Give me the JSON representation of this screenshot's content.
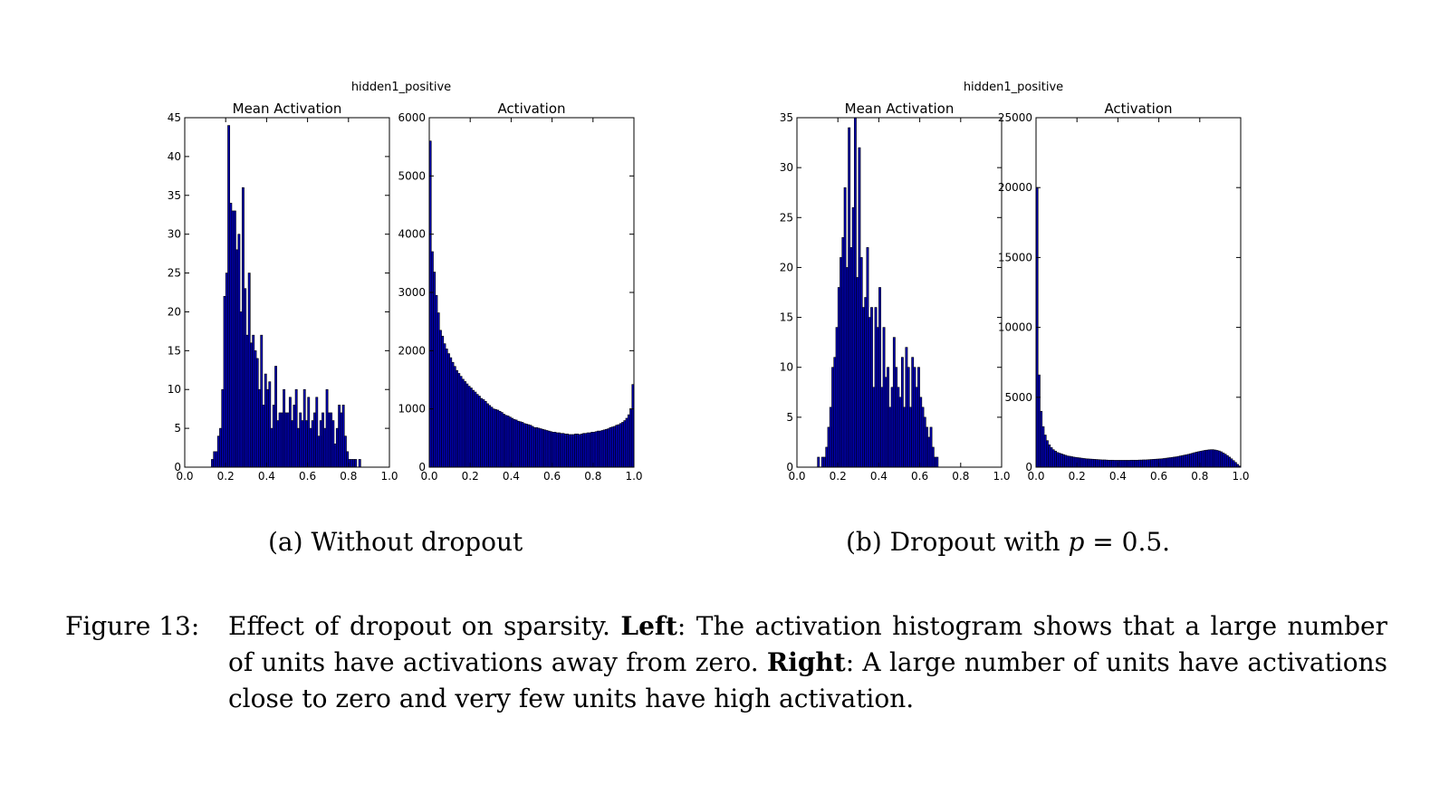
{
  "chart_data": [
    {
      "type": "bar",
      "panel": "a-left",
      "suptitle": "hidden1_positive",
      "title": "Mean Activation",
      "xlim": [
        0.0,
        1.0
      ],
      "ylim": [
        0,
        45
      ],
      "xticks": [
        "0.0",
        "0.2",
        "0.4",
        "0.6",
        "0.8",
        "1.0"
      ],
      "yticks": [
        "0",
        "5",
        "10",
        "15",
        "20",
        "25",
        "30",
        "35",
        "40",
        "45"
      ],
      "bin_width": 0.01,
      "x": [
        0.13,
        0.14,
        0.15,
        0.16,
        0.17,
        0.18,
        0.19,
        0.2,
        0.21,
        0.22,
        0.23,
        0.24,
        0.25,
        0.26,
        0.27,
        0.28,
        0.29,
        0.3,
        0.31,
        0.32,
        0.33,
        0.34,
        0.35,
        0.36,
        0.37,
        0.38,
        0.39,
        0.4,
        0.41,
        0.42,
        0.43,
        0.44,
        0.45,
        0.46,
        0.47,
        0.48,
        0.49,
        0.5,
        0.51,
        0.52,
        0.53,
        0.54,
        0.55,
        0.56,
        0.57,
        0.58,
        0.59,
        0.6,
        0.61,
        0.62,
        0.63,
        0.64,
        0.65,
        0.66,
        0.67,
        0.68,
        0.69,
        0.7,
        0.71,
        0.72,
        0.73,
        0.74,
        0.75,
        0.76,
        0.77,
        0.78,
        0.79,
        0.8,
        0.81,
        0.82,
        0.83,
        0.84,
        0.85
      ],
      "values": [
        1,
        2,
        2,
        4,
        5,
        10,
        22,
        25,
        44,
        34,
        33,
        33,
        28,
        30,
        20,
        36,
        23,
        17,
        25,
        16,
        17,
        15,
        14,
        10,
        17,
        8,
        12,
        10,
        11,
        5,
        8,
        13,
        6,
        7,
        7,
        10,
        7,
        7,
        9,
        6,
        8,
        10,
        5,
        7,
        6,
        10,
        6,
        9,
        5,
        6,
        7,
        9,
        4,
        6,
        7,
        5,
        10,
        7,
        7,
        6,
        3,
        5,
        8,
        7,
        8,
        4,
        2,
        1,
        1,
        1,
        1,
        0,
        1
      ]
    },
    {
      "type": "bar",
      "panel": "a-right",
      "title": "Activation",
      "xlim": [
        0.0,
        1.0
      ],
      "ylim": [
        0,
        6000
      ],
      "xticks": [
        "0.0",
        "0.2",
        "0.4",
        "0.6",
        "0.8",
        "1.0"
      ],
      "yticks": [
        "0",
        "1000",
        "2000",
        "3000",
        "4000",
        "5000",
        "6000"
      ],
      "bin_width": 0.01,
      "x": [
        0.0,
        0.01,
        0.02,
        0.03,
        0.04,
        0.05,
        0.06,
        0.07,
        0.08,
        0.09,
        0.1,
        0.11,
        0.12,
        0.13,
        0.14,
        0.15,
        0.16,
        0.17,
        0.18,
        0.19,
        0.2,
        0.21,
        0.22,
        0.23,
        0.24,
        0.25,
        0.26,
        0.27,
        0.28,
        0.29,
        0.3,
        0.31,
        0.32,
        0.33,
        0.34,
        0.35,
        0.36,
        0.37,
        0.38,
        0.39,
        0.4,
        0.41,
        0.42,
        0.43,
        0.44,
        0.45,
        0.46,
        0.47,
        0.48,
        0.49,
        0.5,
        0.51,
        0.52,
        0.53,
        0.54,
        0.55,
        0.56,
        0.57,
        0.58,
        0.59,
        0.6,
        0.61,
        0.62,
        0.63,
        0.64,
        0.65,
        0.66,
        0.67,
        0.68,
        0.69,
        0.7,
        0.71,
        0.72,
        0.73,
        0.74,
        0.75,
        0.76,
        0.77,
        0.78,
        0.79,
        0.8,
        0.81,
        0.82,
        0.83,
        0.84,
        0.85,
        0.86,
        0.87,
        0.88,
        0.89,
        0.9,
        0.91,
        0.92,
        0.93,
        0.94,
        0.95,
        0.96,
        0.97,
        0.98,
        0.99
      ],
      "values": [
        5600,
        3700,
        3350,
        2950,
        2650,
        2350,
        2250,
        2120,
        2030,
        1950,
        1880,
        1800,
        1730,
        1660,
        1610,
        1560,
        1510,
        1470,
        1430,
        1390,
        1360,
        1320,
        1290,
        1250,
        1220,
        1180,
        1160,
        1130,
        1090,
        1060,
        1030,
        1000,
        990,
        980,
        960,
        940,
        910,
        890,
        880,
        860,
        840,
        820,
        810,
        790,
        780,
        770,
        750,
        740,
        730,
        720,
        700,
        680,
        680,
        670,
        660,
        650,
        640,
        630,
        620,
        610,
        600,
        600,
        590,
        590,
        580,
        580,
        570,
        570,
        560,
        560,
        560,
        570,
        570,
        560,
        570,
        580,
        580,
        590,
        590,
        600,
        600,
        610,
        620,
        620,
        630,
        640,
        650,
        660,
        680,
        690,
        700,
        720,
        730,
        750,
        770,
        800,
        840,
        900,
        1000,
        1420
      ]
    },
    {
      "type": "bar",
      "panel": "b-left",
      "suptitle": "hidden1_positive",
      "title": "Mean Activation",
      "xlim": [
        0.0,
        1.0
      ],
      "ylim": [
        0,
        35
      ],
      "xticks": [
        "0.0",
        "0.2",
        "0.4",
        "0.6",
        "0.8",
        "1.0"
      ],
      "yticks": [
        "0",
        "5",
        "10",
        "15",
        "20",
        "25",
        "30",
        "35"
      ],
      "bin_width": 0.01,
      "x": [
        0.09,
        0.1,
        0.11,
        0.12,
        0.13,
        0.14,
        0.15,
        0.16,
        0.17,
        0.18,
        0.19,
        0.2,
        0.21,
        0.22,
        0.23,
        0.24,
        0.25,
        0.26,
        0.27,
        0.28,
        0.29,
        0.3,
        0.31,
        0.32,
        0.33,
        0.34,
        0.35,
        0.36,
        0.37,
        0.38,
        0.39,
        0.4,
        0.41,
        0.42,
        0.43,
        0.44,
        0.45,
        0.46,
        0.47,
        0.48,
        0.49,
        0.5,
        0.51,
        0.52,
        0.53,
        0.54,
        0.55,
        0.56,
        0.57,
        0.58,
        0.59,
        0.6,
        0.61,
        0.62,
        0.63,
        0.64,
        0.65,
        0.66,
        0.67,
        0.68
      ],
      "values": [
        0,
        1,
        0,
        1,
        1,
        2,
        4,
        6,
        10,
        11,
        14,
        18,
        21,
        23,
        28,
        20,
        34,
        22,
        26,
        35,
        19,
        32,
        21,
        16,
        17,
        22,
        15,
        16,
        8,
        16,
        14,
        18,
        8,
        14,
        9,
        10,
        6,
        8,
        13,
        10,
        8,
        7,
        11,
        6,
        12,
        10,
        6,
        11,
        10,
        8,
        10,
        7,
        6,
        5,
        4,
        3,
        4,
        2,
        1,
        1
      ]
    },
    {
      "type": "bar",
      "panel": "b-right",
      "title": "Activation",
      "xlim": [
        0.0,
        1.0
      ],
      "ylim": [
        0,
        25000
      ],
      "xticks": [
        "0.0",
        "0.2",
        "0.4",
        "0.6",
        "0.8",
        "1.0"
      ],
      "yticks": [
        "0",
        "5000",
        "10000",
        "15000",
        "20000",
        "25000"
      ],
      "bin_width": 0.01,
      "x": [
        0.0,
        0.01,
        0.02,
        0.03,
        0.04,
        0.05,
        0.06,
        0.07,
        0.08,
        0.09,
        0.1,
        0.11,
        0.12,
        0.13,
        0.14,
        0.15,
        0.16,
        0.17,
        0.18,
        0.19,
        0.2,
        0.21,
        0.22,
        0.23,
        0.24,
        0.25,
        0.26,
        0.27,
        0.28,
        0.29,
        0.3,
        0.31,
        0.32,
        0.33,
        0.34,
        0.35,
        0.36,
        0.37,
        0.38,
        0.39,
        0.4,
        0.41,
        0.42,
        0.43,
        0.44,
        0.45,
        0.46,
        0.47,
        0.48,
        0.49,
        0.5,
        0.51,
        0.52,
        0.53,
        0.54,
        0.55,
        0.56,
        0.57,
        0.58,
        0.59,
        0.6,
        0.61,
        0.62,
        0.63,
        0.64,
        0.65,
        0.66,
        0.67,
        0.68,
        0.69,
        0.7,
        0.71,
        0.72,
        0.73,
        0.74,
        0.75,
        0.76,
        0.77,
        0.78,
        0.79,
        0.8,
        0.81,
        0.82,
        0.83,
        0.84,
        0.85,
        0.86,
        0.87,
        0.88,
        0.89,
        0.9,
        0.91,
        0.92,
        0.93,
        0.94,
        0.95,
        0.96,
        0.97,
        0.98,
        0.99
      ],
      "values": [
        20000,
        6600,
        4000,
        2900,
        2300,
        1900,
        1600,
        1400,
        1250,
        1150,
        1050,
        1000,
        950,
        900,
        850,
        800,
        780,
        750,
        720,
        700,
        680,
        660,
        640,
        620,
        600,
        590,
        580,
        570,
        560,
        550,
        540,
        530,
        520,
        520,
        510,
        500,
        500,
        500,
        490,
        490,
        490,
        490,
        490,
        490,
        490,
        490,
        500,
        500,
        500,
        500,
        510,
        510,
        520,
        520,
        530,
        540,
        550,
        560,
        570,
        580,
        590,
        600,
        620,
        640,
        660,
        680,
        700,
        720,
        740,
        770,
        800,
        830,
        860,
        890,
        920,
        960,
        1000,
        1040,
        1080,
        1110,
        1140,
        1170,
        1200,
        1220,
        1240,
        1250,
        1250,
        1230,
        1200,
        1160,
        1100,
        1020,
        930,
        830,
        720,
        600,
        470,
        340,
        200,
        80
      ]
    }
  ],
  "subcaptions": {
    "a": "(a) Without dropout",
    "b_prefix": "(b) Dropout with ",
    "b_var": "p",
    "b_suffix": " = 0.5."
  },
  "figure_caption": {
    "label": "Figure 13:",
    "text_1": "Effect of dropout on sparsity. ",
    "bold_1": "Left",
    "text_2": ": The activation histogram shows that a large number of units have activations away from zero. ",
    "bold_2": "Right",
    "text_3": ": A large number of units have activations close to zero and very few units have high activation."
  },
  "colors": {
    "bar_fill": "#0000b4",
    "bar_edge": "#000000",
    "axes": "#000000"
  }
}
